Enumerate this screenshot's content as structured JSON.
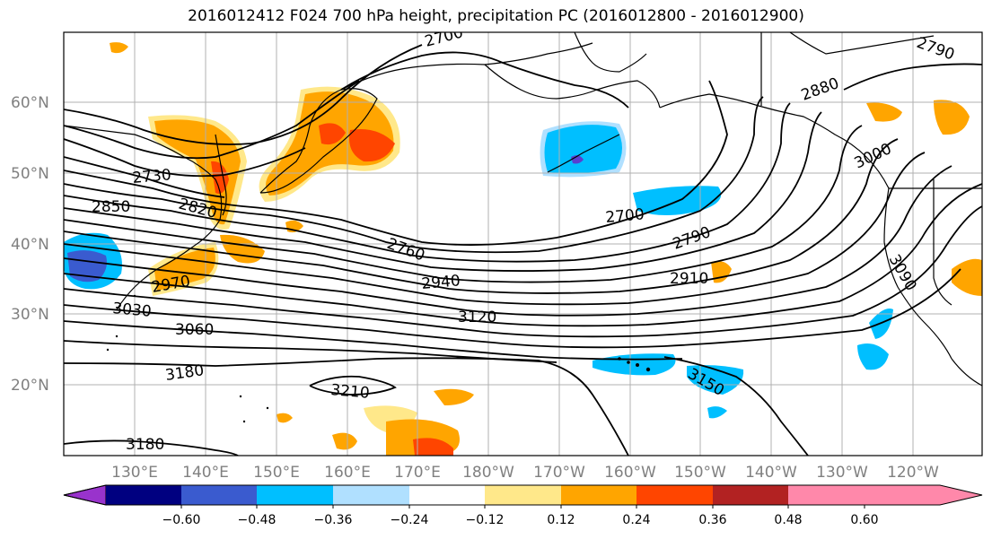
{
  "title": "2016012412 F024 700 hPa height, precipitation PC (2016012800 - 2016012900)",
  "lat_labels": [
    "60°N",
    "50°N",
    "40°N",
    "30°N",
    "20°N"
  ],
  "lon_labels": [
    "130°E",
    "140°E",
    "150°E",
    "160°E",
    "170°E",
    "180°W",
    "170°W",
    "160°W",
    "150°W",
    "140°W",
    "130°W",
    "120°W"
  ],
  "contour_labels": [
    "2700",
    "2790",
    "2880",
    "3000",
    "2730",
    "2820",
    "2850",
    "2760",
    "2700",
    "2790",
    "2940",
    "2910",
    "3030",
    "3120",
    "3060",
    "3090",
    "3180",
    "3150",
    "3210",
    "3180",
    "2970"
  ],
  "colorbar": {
    "ticks": [
      "−0.60",
      "−0.48",
      "−0.36",
      "−0.24",
      "−0.12",
      "0.12",
      "0.24",
      "0.36",
      "0.48",
      "0.60"
    ],
    "colors": [
      "#9933cc",
      "#000080",
      "#3a5bcf",
      "#00bfff",
      "#b0e0ff",
      "#ffffff",
      "#ffe88a",
      "#ffa500",
      "#ff4500",
      "#b22222",
      "#ff88aa"
    ]
  },
  "fill_colors": {
    "neg_light": "#00bfff",
    "neg_mid": "#3a5bcf",
    "neg_dark": "#5a3fd0",
    "pos_light": "#ffe88a",
    "pos_mid": "#ffa500",
    "pos_high": "#ff4500",
    "pos_top": "#b22222"
  }
}
